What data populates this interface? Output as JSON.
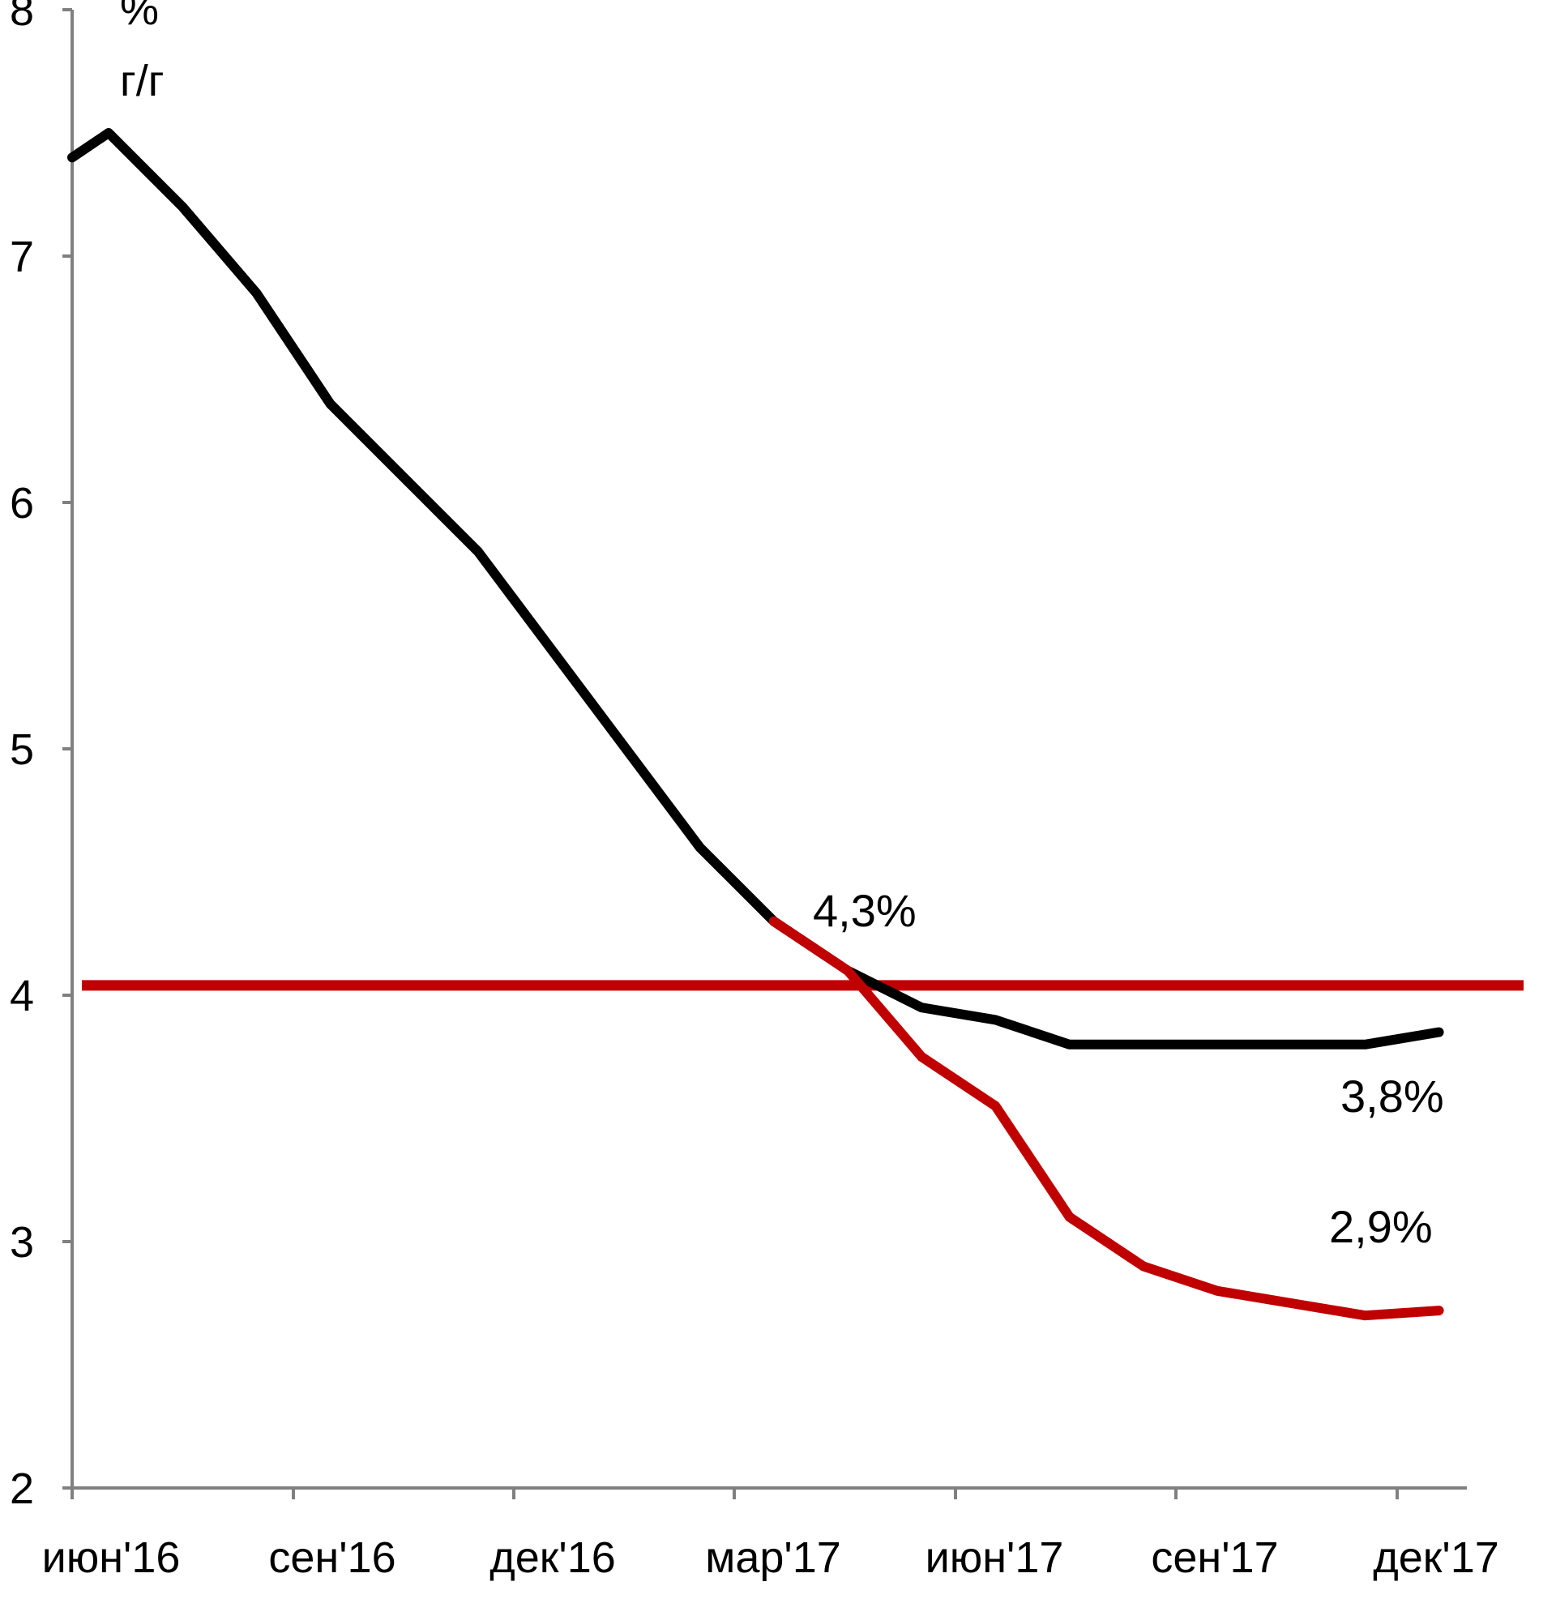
{
  "chart_data": {
    "type": "line",
    "unit_label": [
      "%",
      "г/г"
    ],
    "x_ticks": [
      "июн'16",
      "сен'16",
      "дек'16",
      "мар'17",
      "июн'17",
      "сен'17",
      "дек'17"
    ],
    "y_ticks": [
      "2",
      "3",
      "4",
      "5",
      "6",
      "7",
      "8"
    ],
    "ylim": [
      2,
      8
    ],
    "x": [
      "2016-06",
      "2016-07",
      "2016-08",
      "2016-09",
      "2016-10",
      "2016-11",
      "2016-12",
      "2017-01",
      "2017-02",
      "2017-03",
      "2017-04",
      "2017-05",
      "2017-06",
      "2017-07",
      "2017-08",
      "2017-09",
      "2017-10",
      "2017-11",
      "2017-12"
    ],
    "series": [
      {
        "color": "#000000",
        "values": [
          7.5,
          7.2,
          6.85,
          6.4,
          6.1,
          5.8,
          5.4,
          5.0,
          4.6,
          4.3,
          4.1,
          3.95,
          3.9,
          3.8,
          3.8,
          3.8,
          3.8,
          3.8,
          3.85
        ]
      },
      {
        "color": "#c00000",
        "values": [
          null,
          null,
          null,
          null,
          null,
          null,
          null,
          null,
          null,
          4.3,
          4.1,
          3.75,
          3.55,
          3.1,
          2.9,
          2.8,
          2.75,
          2.7,
          2.72
        ]
      },
      {
        "color": "#c00000",
        "values": [
          4.04,
          4.04,
          4.04,
          4.04,
          4.04,
          4.04,
          4.04,
          4.04,
          4.04,
          4.04,
          4.04,
          4.04,
          4.04,
          4.04,
          4.04,
          4.04,
          4.04,
          4.04,
          4.04
        ]
      }
    ],
    "annotations": [
      {
        "text": "4,3%",
        "x": "2017-04",
        "y": 4.3
      },
      {
        "text": "3,8%",
        "x": "2017-12",
        "y": 3.8
      },
      {
        "text": "2,9%",
        "x": "2017-12",
        "y": 2.9
      }
    ]
  }
}
